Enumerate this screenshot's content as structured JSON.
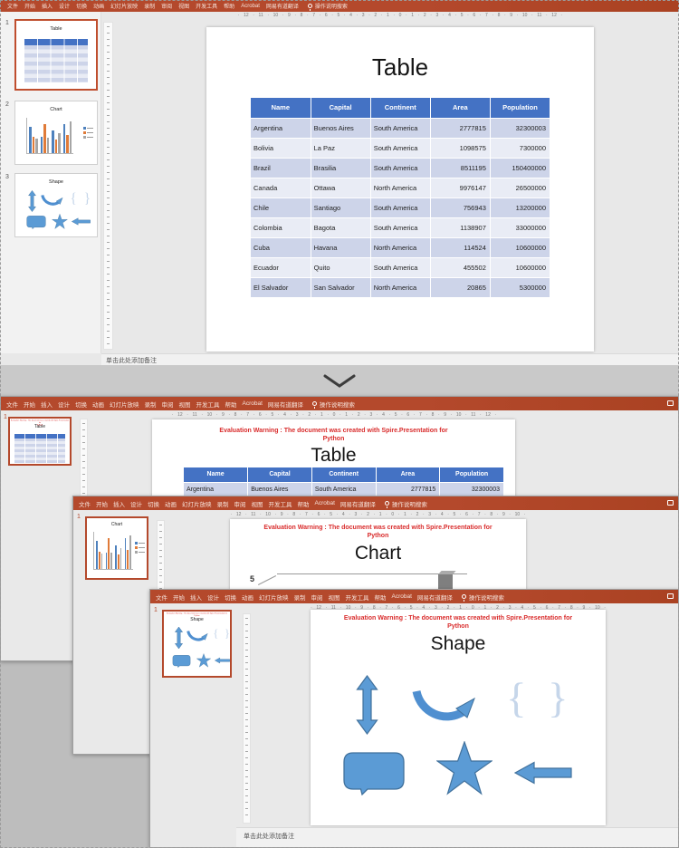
{
  "ribbon": {
    "items": [
      "文件",
      "开始",
      "插入",
      "设计",
      "切换",
      "动画",
      "幻灯片放映",
      "录制",
      "审阅",
      "视图",
      "开发工具",
      "帮助",
      "Acrobat",
      "网易有道翻译"
    ],
    "search_label": "操作说明搜索"
  },
  "ruler_numbers": "· 12 · 11 · 10 · 9 · 8 · 7 · 6 · 5 · 4 · 3 · 2 · 1 · 0 · 1 · 2 · 3 · 4 · 5 · 6 · 7 · 8 · 9 · 10 · 11 · 12 ·",
  "notes_placeholder": "单击此处添加备注",
  "warning": {
    "line1": "Evaluation Warning : The document was created with Spire.Presentation for",
    "line2": "Python"
  },
  "panel": {
    "numbers": [
      "1",
      "2",
      "3"
    ]
  },
  "titles": {
    "table": "Table",
    "chart": "Chart",
    "shape": "Shape"
  },
  "doc_windows": {
    "slide_number": "1",
    "chart_axis_label": "5"
  },
  "table": {
    "headers": [
      "Name",
      "Capital",
      "Continent",
      "Area",
      "Population"
    ],
    "rows": [
      [
        "Argentina",
        "Buenos Aires",
        "South America",
        "2777815",
        "32300003"
      ],
      [
        "Bolivia",
        "La Paz",
        "South America",
        "1098575",
        "7300000"
      ],
      [
        "Brazil",
        "Brasilia",
        "South America",
        "8511195",
        "150400000"
      ],
      [
        "Canada",
        "Ottawa",
        "North America",
        "9976147",
        "26500000"
      ],
      [
        "Chile",
        "Santiago",
        "South America",
        "756943",
        "13200000"
      ],
      [
        "Colombia",
        "Bagota",
        "South America",
        "1138907",
        "33000000"
      ],
      [
        "Cuba",
        "Havana",
        "North America",
        "114524",
        "10600000"
      ],
      [
        "Ecuador",
        "Quito",
        "South America",
        "455502",
        "10600000"
      ],
      [
        "El Salvador",
        "San Salvador",
        "North America",
        "20865",
        "5300000"
      ]
    ]
  },
  "chart_data": {
    "type": "bar",
    "categories": [
      "",
      "",
      "",
      ""
    ],
    "series": [
      {
        "color": "#4e81bd",
        "values": [
          7.5,
          4.5,
          6.3,
          8.2
        ]
      },
      {
        "color": "#e07b39",
        "values": [
          4.6,
          8.3,
          3.9,
          5.2
        ]
      },
      {
        "color": "#a6a6a6",
        "values": [
          4.1,
          4.3,
          5.6,
          9.0
        ]
      }
    ],
    "ylim": [
      0,
      10
    ],
    "legend_position": "right"
  }
}
